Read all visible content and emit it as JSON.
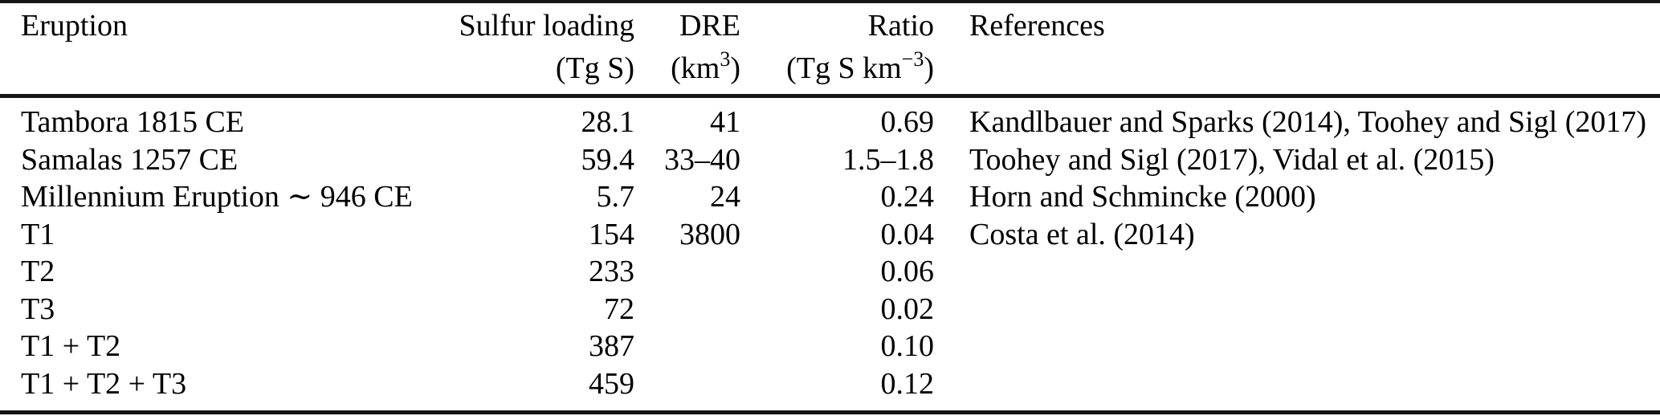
{
  "table": {
    "colors": {
      "text": "#000000",
      "background": "#ffffff",
      "rule": "#161616"
    },
    "columns": [
      {
        "id": "eruption",
        "label": "Eruption",
        "unit_pre": "",
        "unit_sup": "",
        "unit_post": ""
      },
      {
        "id": "sulfur_loading",
        "label": "Sulfur loading",
        "unit_pre": "(Tg S)",
        "unit_sup": "",
        "unit_post": ""
      },
      {
        "id": "dre",
        "label": "DRE",
        "unit_pre": "(km",
        "unit_sup": "3",
        "unit_post": ")"
      },
      {
        "id": "ratio",
        "label": "Ratio",
        "unit_pre": "(Tg S km",
        "unit_sup": "−3",
        "unit_post": ")"
      },
      {
        "id": "references",
        "label": "References",
        "unit_pre": "",
        "unit_sup": "",
        "unit_post": ""
      }
    ],
    "rows": [
      {
        "eruption": "Tambora 1815 CE",
        "sulfur_loading": "28.1",
        "dre": "41",
        "ratio": "0.69",
        "references": "Kandlbauer and Sparks (2014), Toohey and Sigl (2017)"
      },
      {
        "eruption": "Samalas 1257 CE",
        "sulfur_loading": "59.4",
        "dre": "33–40",
        "ratio": "1.5–1.8",
        "references": "Toohey and Sigl (2017), Vidal et al. (2015)"
      },
      {
        "eruption": "Millennium Eruption ∼ 946 CE",
        "sulfur_loading": "5.7",
        "dre": "24",
        "ratio": "0.24",
        "references": "Horn and Schmincke (2000)"
      },
      {
        "eruption": "T1",
        "sulfur_loading": "154",
        "dre": "3800",
        "ratio": "0.04",
        "references": "Costa et al. (2014)"
      },
      {
        "eruption": "T2",
        "sulfur_loading": "233",
        "dre": "",
        "ratio": "0.06",
        "references": ""
      },
      {
        "eruption": "T3",
        "sulfur_loading": "72",
        "dre": "",
        "ratio": "0.02",
        "references": ""
      },
      {
        "eruption": "T1 + T2",
        "sulfur_loading": "387",
        "dre": "",
        "ratio": "0.10",
        "references": ""
      },
      {
        "eruption": "T1 + T2 + T3",
        "sulfur_loading": "459",
        "dre": "",
        "ratio": "0.12",
        "references": ""
      }
    ]
  }
}
